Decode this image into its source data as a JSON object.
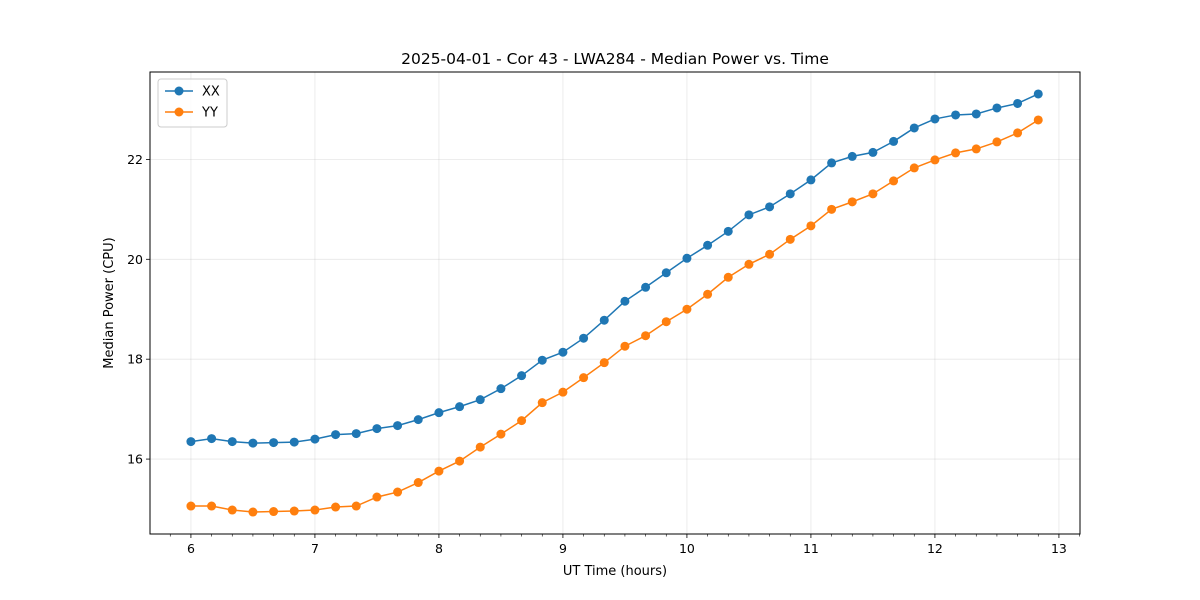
{
  "chart_data": {
    "type": "line",
    "title": "2025-04-01 - Cor 43 - LWA284 - Median Power vs. Time",
    "xlabel": "UT Time (hours)",
    "ylabel": "Median Power (CPU)",
    "xlim": [
      5.67,
      13.17
    ],
    "ylim": [
      14.5,
      23.75
    ],
    "xticks": [
      6,
      7,
      8,
      9,
      10,
      11,
      12,
      13
    ],
    "yticks": [
      16,
      18,
      20,
      22
    ],
    "grid": true,
    "legend_position": "top-left",
    "x": [
      6.0,
      6.1667,
      6.3333,
      6.5,
      6.6667,
      6.8333,
      7.0,
      7.1667,
      7.3333,
      7.5,
      7.6667,
      7.8333,
      8.0,
      8.1667,
      8.3333,
      8.5,
      8.6667,
      8.8333,
      9.0,
      9.1667,
      9.3333,
      9.5,
      9.6667,
      9.8333,
      10.0,
      10.1667,
      10.3333,
      10.5,
      10.6667,
      10.8333,
      11.0,
      11.1667,
      11.3333,
      11.5,
      11.6667,
      11.8333,
      12.0,
      12.1667,
      12.3333,
      12.5,
      12.6667,
      12.8333
    ],
    "series": [
      {
        "name": "XX",
        "color": "#1f77b4",
        "values": [
          16.35,
          16.41,
          16.35,
          16.32,
          16.33,
          16.34,
          16.4,
          16.49,
          16.51,
          16.61,
          16.67,
          16.79,
          16.93,
          17.05,
          17.19,
          17.41,
          17.67,
          17.98,
          18.14,
          18.42,
          18.78,
          19.16,
          19.44,
          19.73,
          20.02,
          20.28,
          20.56,
          20.89,
          21.05,
          21.31,
          21.59,
          21.93,
          22.06,
          22.14,
          22.36,
          22.63,
          22.81,
          22.89,
          22.91,
          23.03,
          23.12,
          23.31
        ]
      },
      {
        "name": "YY",
        "color": "#ff7f0e",
        "values": [
          15.06,
          15.06,
          14.98,
          14.94,
          14.95,
          14.96,
          14.98,
          15.04,
          15.06,
          15.24,
          15.34,
          15.53,
          15.76,
          15.96,
          16.24,
          16.5,
          16.77,
          17.13,
          17.34,
          17.63,
          17.93,
          18.26,
          18.47,
          18.75,
          19.0,
          19.3,
          19.64,
          19.9,
          20.1,
          20.4,
          20.67,
          21.0,
          21.15,
          21.31,
          21.57,
          21.83,
          21.99,
          22.13,
          22.21,
          22.35,
          22.53,
          22.79
        ]
      }
    ]
  }
}
